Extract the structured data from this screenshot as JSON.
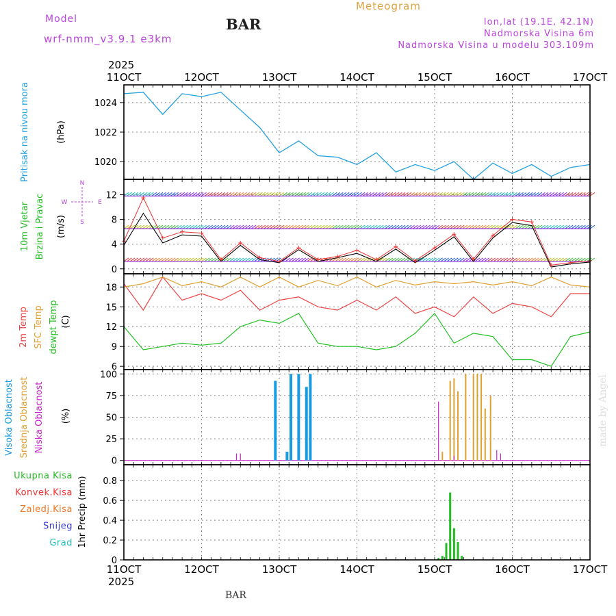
{
  "header": {
    "model_label": "Model",
    "model_name": "wrf-nmm_v3.9.1  e3km",
    "station": "BAR",
    "title": "Meteogram",
    "lonlat": "lon,lat (19.1E, 42.1N)",
    "elevation": "Nadmorska Visina 6m",
    "model_elevation": "Nadmorska Visina u modelu 303.109m",
    "credit": "made by Angel",
    "footer_station": "BAR"
  },
  "colors": {
    "pressure": "#22a0e0",
    "wind_label": "#22bb22",
    "t2m": "#ee4444",
    "sfc": "#e0a030",
    "dewpt": "#22c022",
    "high_cloud": "#1a9be0",
    "mid_cloud": "#e0a030",
    "low_cloud": "#cc22cc",
    "total_rain": "#22bb22",
    "conv_rain": "#ee3333",
    "frz_rain": "#ee7722",
    "snow": "#3333dd",
    "graupel": "#22bbbb",
    "purple": "#bb44dd",
    "title_orange": "#e0a040"
  },
  "chart_data": [
    {
      "type": "line",
      "id": "pressure",
      "ylabel": "Pritisak na nivou mora",
      "unit": "(hPa)",
      "ylim": [
        1018.8,
        1025.2
      ],
      "yticks": [
        1020,
        1022,
        1024
      ],
      "x": [
        11,
        11.25,
        11.5,
        11.75,
        12,
        12.25,
        12.5,
        12.75,
        13,
        13.25,
        13.5,
        13.75,
        14,
        14.25,
        14.5,
        14.75,
        15,
        15.25,
        15.5,
        15.75,
        16,
        16.25,
        16.5,
        16.75,
        17
      ],
      "values": [
        1024.6,
        1024.7,
        1023.2,
        1024.6,
        1024.4,
        1024.7,
        1023.5,
        1022.3,
        1020.6,
        1021.4,
        1020.4,
        1020.3,
        1019.8,
        1020.6,
        1019.3,
        1019.8,
        1019.4,
        1020.0,
        1018.8,
        1019.9,
        1019.2,
        1019.8,
        1019.0,
        1019.6,
        1019.8
      ],
      "series_name": "Pritisak"
    },
    {
      "type": "line",
      "id": "wind",
      "ylabel": [
        "10m Vjetar",
        "Brzina i Pravac"
      ],
      "unit": "(m/s)",
      "compass": [
        "N",
        "W",
        "E",
        "S"
      ],
      "ylim": [
        -0.8,
        14.5
      ],
      "yticks": [
        0,
        4,
        8,
        12
      ],
      "x": [
        11,
        11.25,
        11.5,
        11.75,
        12,
        12.25,
        12.5,
        12.75,
        13,
        13.25,
        13.5,
        13.75,
        14,
        14.25,
        14.5,
        14.75,
        15,
        15.25,
        15.5,
        15.75,
        16,
        16.25,
        16.5,
        16.75,
        17
      ],
      "values": [
        3.8,
        9.0,
        4.2,
        5.5,
        5.3,
        1.2,
        3.8,
        1.5,
        1.0,
        3.1,
        1.2,
        1.8,
        2.5,
        1.2,
        3.2,
        1.0,
        3.0,
        5.2,
        1.2,
        5.0,
        7.5,
        7.0,
        0.3,
        0.8,
        1.1
      ],
      "gust_values": [
        4.5,
        11.5,
        5.0,
        6.0,
        5.8,
        1.5,
        4.2,
        1.8,
        1.2,
        3.4,
        1.5,
        2.0,
        3.0,
        1.5,
        3.6,
        1.3,
        3.4,
        5.6,
        1.6,
        5.4,
        8.0,
        7.6,
        0.6,
        1.0,
        1.3
      ],
      "series_name": "Brzina"
    },
    {
      "type": "line",
      "id": "temperature",
      "ylabel": [
        "2m Temp",
        "SFC Temp",
        "dewpt Temp"
      ],
      "unit": "(C)",
      "ylim": [
        5.5,
        20.0
      ],
      "yticks": [
        6,
        9,
        12,
        15,
        18
      ],
      "x": [
        11,
        11.25,
        11.5,
        11.75,
        12,
        12.25,
        12.5,
        12.75,
        13,
        13.25,
        13.5,
        13.75,
        14,
        14.25,
        14.5,
        14.75,
        15,
        15.25,
        15.5,
        15.75,
        16,
        16.25,
        16.5,
        16.75,
        17
      ],
      "series": [
        {
          "name": "2m Temp",
          "values": [
            18.5,
            14.5,
            19.5,
            16.0,
            17.0,
            16.0,
            17.5,
            14.5,
            16.0,
            16.5,
            15.0,
            14.5,
            16.0,
            14.5,
            16.5,
            14.0,
            15.0,
            13.5,
            16.5,
            14.0,
            15.5,
            15.0,
            13.5,
            17.0,
            17.0
          ]
        },
        {
          "name": "SFC Temp",
          "values": [
            18.0,
            18.5,
            19.5,
            18.2,
            18.8,
            18.0,
            19.5,
            18.0,
            19.5,
            18.0,
            19.0,
            18.2,
            19.5,
            18.0,
            19.0,
            18.3,
            18.8,
            18.5,
            18.8,
            18.3,
            18.8,
            18.2,
            19.5,
            18.3,
            18.0
          ]
        },
        {
          "name": "dewpt Temp",
          "values": [
            12.0,
            8.5,
            9.0,
            9.5,
            9.2,
            9.5,
            12.0,
            13.0,
            12.5,
            14.0,
            9.5,
            9.0,
            9.0,
            8.5,
            9.0,
            11.0,
            14.0,
            9.5,
            11.0,
            10.5,
            7.0,
            7.0,
            6.0,
            10.5,
            11.2
          ]
        }
      ]
    },
    {
      "type": "bar",
      "id": "clouds",
      "ylabel": [
        "Visoka Oblacnost",
        "Srednja Oblacnost",
        "Niska Oblacnost"
      ],
      "unit": "(%)",
      "ylim": [
        -5,
        105
      ],
      "yticks": [
        0,
        25,
        50,
        75,
        100
      ],
      "series": [
        {
          "name": "Visoka Oblacnost",
          "x": [
            12.95,
            13.1,
            13.15,
            13.25,
            13.35,
            13.4
          ],
          "values": [
            92,
            10,
            100,
            100,
            85,
            100
          ]
        },
        {
          "name": "Srednja Oblacnost",
          "x": [
            15.1,
            15.2,
            15.25,
            15.3,
            15.4,
            15.5,
            15.55,
            15.6,
            15.65,
            15.72
          ],
          "values": [
            10,
            92,
            95,
            80,
            100,
            100,
            100,
            100,
            60,
            75
          ]
        },
        {
          "name": "Niska Oblacnost",
          "x": [
            12.45,
            12.5,
            15.05,
            15.25,
            15.8,
            15.85
          ],
          "values": [
            8,
            8,
            68,
            5,
            12,
            8
          ]
        }
      ]
    },
    {
      "type": "bar",
      "id": "precip",
      "ylabel": "1hr Precip",
      "unit": "(mm)",
      "legend": [
        "Ukupna Kisa",
        "Konvek.Kisa",
        "Zaledj.Kisa",
        "Snijeg",
        "Grad"
      ],
      "ylim": [
        0,
        0.96
      ],
      "yticks": [
        0,
        0.2,
        0.4,
        0.6,
        0.8
      ],
      "x": [
        15.05,
        15.1,
        15.15,
        15.2,
        15.25,
        15.3,
        15.35
      ],
      "values": [
        0.02,
        0.04,
        0.17,
        0.68,
        0.32,
        0.18,
        0.04
      ]
    }
  ],
  "x_axis": {
    "year": "2025",
    "ticks": [
      "11OCT",
      "12OCT",
      "13OCT",
      "14OCT",
      "15OCT",
      "16OCT",
      "17OCT"
    ],
    "tick_values": [
      11,
      12,
      13,
      14,
      15,
      16,
      17
    ]
  }
}
